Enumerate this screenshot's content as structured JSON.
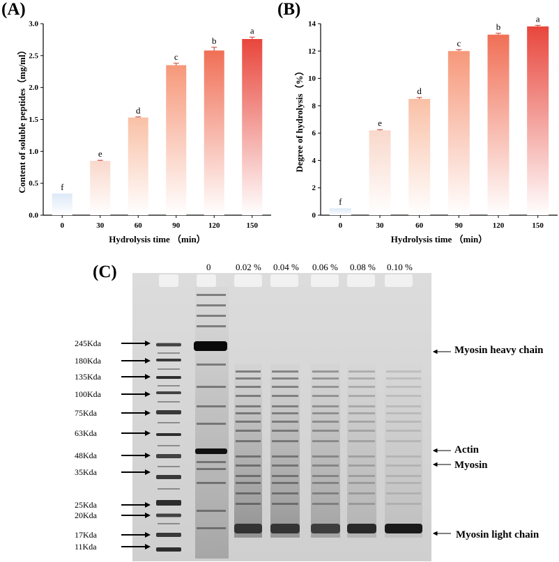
{
  "panels": {
    "A": "(A)",
    "B": "(B)",
    "C": "(C)"
  },
  "chart_data": [
    {
      "type": "bar",
      "panel": "(A)",
      "categories": [
        "0",
        "30",
        "60",
        "90",
        "120",
        "150"
      ],
      "values": [
        0.34,
        0.85,
        1.53,
        2.35,
        2.58,
        2.76
      ],
      "errors": [
        0.0,
        0.01,
        0.01,
        0.03,
        0.05,
        0.03
      ],
      "significance_letters": [
        "f",
        "e",
        "d",
        "c",
        "b",
        "a"
      ],
      "xlabel": "Hydrolysis time （min）",
      "ylabel": "Content of soluble peptides（mg/ml）",
      "ylim": [
        0,
        3.0
      ],
      "yticks": [
        "0.0",
        "0.5",
        "1.0",
        "1.5",
        "2.0",
        "2.5",
        "3.0"
      ],
      "colors": [
        "#dce9f7",
        "#f9d8cb",
        "#f9c0a6",
        "#f6987a",
        "#f06f56",
        "#e8463c"
      ],
      "grid": false
    },
    {
      "type": "bar",
      "panel": "(B)",
      "categories": [
        "0",
        "30",
        "60",
        "90",
        "120",
        "150"
      ],
      "values": [
        0.5,
        6.2,
        8.5,
        12.0,
        13.2,
        13.8
      ],
      "errors": [
        0.0,
        0.05,
        0.1,
        0.1,
        0.1,
        0.08
      ],
      "significance_letters": [
        "f",
        "e",
        "d",
        "c",
        "b",
        "a"
      ],
      "xlabel": "Hydrolysis time （min）",
      "ylabel": "Degree of hydrolysis（%）",
      "ylim": [
        0,
        14
      ],
      "yticks": [
        "0",
        "2",
        "4",
        "6",
        "8",
        "10",
        "12",
        "14"
      ],
      "colors": [
        "#dce9f7",
        "#f9d8cb",
        "#f9c0a6",
        "#f6987a",
        "#f06f56",
        "#e8463c"
      ],
      "grid": false
    }
  ],
  "gel": {
    "lanes": [
      "0",
      "0.02 %",
      "0.04 %",
      "0.06 %",
      "0.08 %",
      "0.10 %"
    ],
    "markers": [
      "245Kda",
      "180Kda",
      "135Kda",
      "100Kda",
      "75Kda",
      "63Kda",
      "48Kda",
      "35Kda",
      "25Kda",
      "20Kda",
      "17Kda",
      "11Kda"
    ],
    "band_labels": [
      "Myosin heavy chain",
      "Actin",
      "Myosin",
      "Myosin light chain"
    ]
  }
}
